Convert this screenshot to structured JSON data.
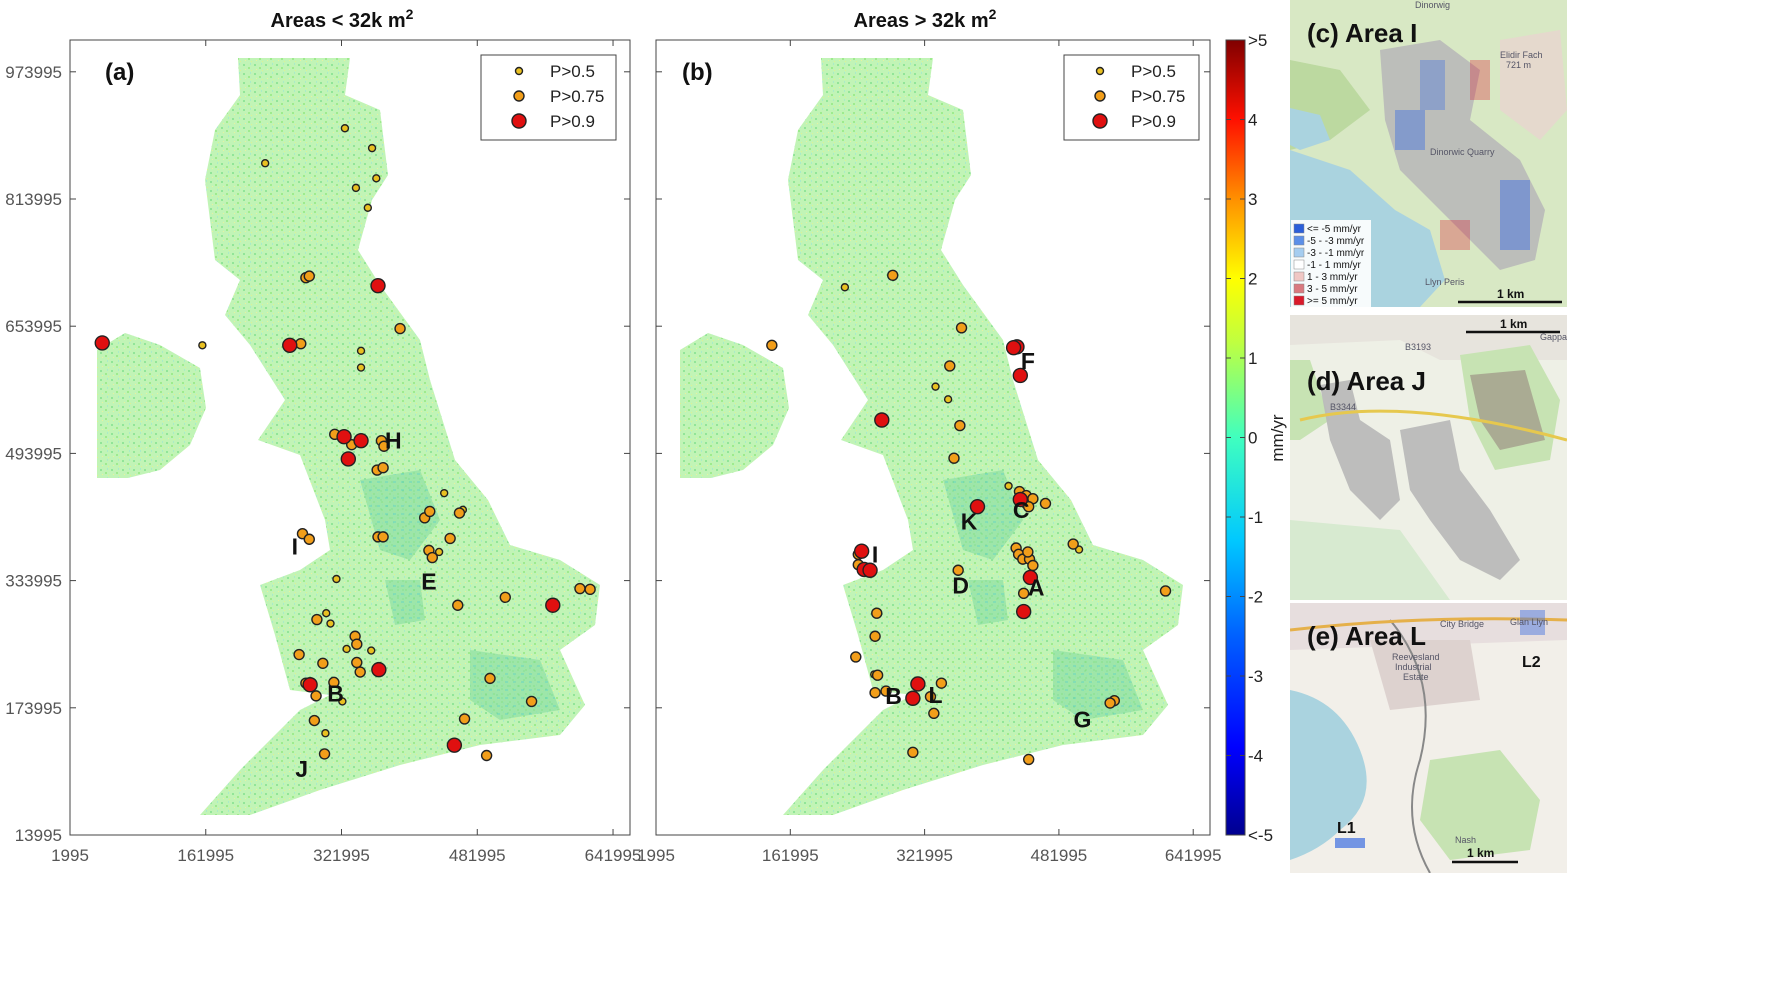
{
  "chart_data": [
    {
      "type": "scatter",
      "panel": "(a)",
      "title_main": "Areas < 32k m",
      "title_sup": "2",
      "xlim": [
        1995,
        661995
      ],
      "ylim": [
        13995,
        1013995
      ],
      "x_ticks": [
        "1995",
        "161995",
        "321995",
        "481995",
        "641995"
      ],
      "y_ticks": [
        "973995",
        "813995",
        "653995",
        "493995",
        "333995",
        "173995",
        "13995"
      ],
      "legend": [
        "P>0.5",
        "P>0.75",
        "P>0.9"
      ],
      "area_labels": [
        {
          "text": "H",
          "x": 383000,
          "y": 500000
        },
        {
          "text": "I",
          "x": 267000,
          "y": 367000
        },
        {
          "text": "E",
          "x": 425000,
          "y": 323000
        },
        {
          "text": "B",
          "x": 315000,
          "y": 182000
        },
        {
          "text": "J",
          "x": 275000,
          "y": 87000
        }
      ],
      "points_p09": [
        [
          40000,
          633000
        ],
        [
          261000,
          630000
        ],
        [
          365000,
          705000
        ],
        [
          325000,
          515000
        ],
        [
          345000,
          510000
        ],
        [
          330000,
          487000
        ],
        [
          366000,
          222000
        ],
        [
          285000,
          203000
        ],
        [
          455000,
          127000
        ],
        [
          571000,
          303000
        ]
      ],
      "points_p075": [
        [
          274000,
          632000
        ],
        [
          280000,
          715000
        ],
        [
          284000,
          717000
        ],
        [
          391000,
          651000
        ],
        [
          314000,
          518000
        ],
        [
          334000,
          505000
        ],
        [
          369000,
          510000
        ],
        [
          372000,
          503000
        ],
        [
          364000,
          473000
        ],
        [
          371000,
          476000
        ],
        [
          420000,
          413000
        ],
        [
          426000,
          421000
        ],
        [
          461000,
          419000
        ],
        [
          365000,
          389000
        ],
        [
          371000,
          389000
        ],
        [
          425000,
          372000
        ],
        [
          429000,
          363000
        ],
        [
          450000,
          387000
        ],
        [
          459000,
          303000
        ],
        [
          276000,
          393000
        ],
        [
          284000,
          386000
        ],
        [
          293000,
          285000
        ],
        [
          338000,
          264000
        ],
        [
          340000,
          254000
        ],
        [
          272000,
          241000
        ],
        [
          300000,
          230000
        ],
        [
          340000,
          231000
        ],
        [
          344000,
          219000
        ],
        [
          280000,
          205000
        ],
        [
          292000,
          189000
        ],
        [
          313000,
          206000
        ],
        [
          290000,
          158000
        ],
        [
          302000,
          116000
        ],
        [
          467000,
          160000
        ],
        [
          497000,
          211000
        ],
        [
          546000,
          182000
        ],
        [
          515000,
          313000
        ],
        [
          603000,
          324000
        ],
        [
          615000,
          323000
        ],
        [
          493000,
          114000
        ]
      ],
      "points_p05": [
        [
          158000,
          630000
        ],
        [
          232000,
          859000
        ],
        [
          326000,
          903000
        ],
        [
          358000,
          878000
        ],
        [
          363000,
          840000
        ],
        [
          339000,
          828000
        ],
        [
          353000,
          803000
        ],
        [
          345000,
          623000
        ],
        [
          345000,
          602000
        ],
        [
          309000,
          280000
        ],
        [
          304000,
          293000
        ],
        [
          328000,
          248000
        ],
        [
          357000,
          246000
        ],
        [
          303000,
          142000
        ],
        [
          323000,
          182000
        ],
        [
          465000,
          423000
        ],
        [
          443000,
          444000
        ],
        [
          316000,
          336000
        ],
        [
          437000,
          370000
        ]
      ]
    },
    {
      "type": "scatter",
      "panel": "(b)",
      "title_main": "Areas > 32k m",
      "title_sup": "2",
      "xlim": [
        1995,
        661995
      ],
      "ylim": [
        1013995,
        13995
      ],
      "x_ticks": [
        "1995",
        "161995",
        "321995",
        "481995",
        "641995"
      ],
      "legend": [
        "P>0.5",
        "P>0.75",
        "P>0.9"
      ],
      "area_labels": [
        {
          "text": "F",
          "x": 445000,
          "y": 600000
        },
        {
          "text": "C",
          "x": 437000,
          "y": 413000
        },
        {
          "text": "K",
          "x": 375000,
          "y": 398000
        },
        {
          "text": "I",
          "x": 263000,
          "y": 357000
        },
        {
          "text": "D",
          "x": 365000,
          "y": 318000
        },
        {
          "text": "A",
          "x": 455000,
          "y": 315000
        },
        {
          "text": "B",
          "x": 285000,
          "y": 179000
        },
        {
          "text": "L",
          "x": 335000,
          "y": 180000
        },
        {
          "text": "G",
          "x": 510000,
          "y": 149000
        }
      ],
      "points_p09": [
        [
          432000,
          628000
        ],
        [
          428000,
          627000
        ],
        [
          436000,
          592000
        ],
        [
          271000,
          536000
        ],
        [
          385000,
          427000
        ],
        [
          436000,
          436000
        ],
        [
          448000,
          338000
        ],
        [
          440000,
          295000
        ],
        [
          247000,
          371000
        ],
        [
          250000,
          348000
        ],
        [
          257000,
          347000
        ],
        [
          314000,
          204000
        ],
        [
          308000,
          186000
        ]
      ],
      "points_p075": [
        [
          140000,
          630000
        ],
        [
          284000,
          718000
        ],
        [
          366000,
          652000
        ],
        [
          352000,
          604000
        ],
        [
          364000,
          529000
        ],
        [
          357000,
          488000
        ],
        [
          435000,
          446000
        ],
        [
          443000,
          441000
        ],
        [
          444000,
          430000
        ],
        [
          451000,
          437000
        ],
        [
          446000,
          427000
        ],
        [
          466000,
          431000
        ],
        [
          431000,
          375000
        ],
        [
          434000,
          367000
        ],
        [
          439000,
          361000
        ],
        [
          447000,
          361000
        ],
        [
          445000,
          370000
        ],
        [
          451000,
          353000
        ],
        [
          440000,
          318000
        ],
        [
          362000,
          347000
        ],
        [
          499000,
          380000
        ],
        [
          609000,
          321000
        ],
        [
          243000,
          367000
        ],
        [
          243000,
          354000
        ],
        [
          265000,
          293000
        ],
        [
          263000,
          264000
        ],
        [
          240000,
          238000
        ],
        [
          266000,
          215000
        ],
        [
          276000,
          195000
        ],
        [
          263000,
          193000
        ],
        [
          329000,
          188000
        ],
        [
          342000,
          205000
        ],
        [
          333000,
          167000
        ],
        [
          308000,
          118000
        ],
        [
          446000,
          109000
        ],
        [
          548000,
          183000
        ],
        [
          543000,
          180000
        ]
      ],
      "points_p05": [
        [
          227000,
          703000
        ],
        [
          335000,
          578000
        ],
        [
          350000,
          562000
        ],
        [
          422000,
          453000
        ],
        [
          506000,
          373000
        ],
        [
          262000,
          216000
        ]
      ]
    }
  ],
  "colorbar": {
    "ticks": [
      ">5",
      "4",
      "3",
      "2",
      "1",
      "0",
      "-1",
      "-2",
      "-3",
      "-4",
      "<-5"
    ],
    "label": "mm/yr",
    "colors": [
      "#800000",
      "#ff0000",
      "#ff8000",
      "#ffff00",
      "#80ff80",
      "#00ffff",
      "#0080ff",
      "#0000ff",
      "#00008f"
    ]
  },
  "marker_colors": {
    "p05": "#e9c021",
    "p075": "#f29e1a",
    "p09": "#e01010"
  },
  "insets": {
    "c": {
      "title": "(c) Area I",
      "map_labels": [
        "Dinorwig",
        "Elidir Fach",
        "721 m",
        "Dinorwic Quarry",
        "Llyn Peris"
      ],
      "legend": [
        "<= -5 mm/yr",
        "-5 - -3 mm/yr",
        "-3 - -1 mm/yr",
        "-1 - 1 mm/yr",
        "1 - 3 mm/yr",
        "3 - 5 mm/yr",
        ">= 5 mm/yr"
      ],
      "legend_colors": [
        "#2b5fd9",
        "#5b8fe8",
        "#a5cdf0",
        "#ffffff",
        "#f0c7c4",
        "#d97a80",
        "#d91a2b"
      ],
      "scale": "1 km"
    },
    "d": {
      "title": "(d) Area J",
      "map_labels": [
        "Gappah",
        "B3193",
        "B3344"
      ],
      "scale": "1 km"
    },
    "e": {
      "title": "(e) Area L",
      "map_labels": [
        "City Bridge",
        "Glan Llyn",
        "Reevesland",
        "Industrial",
        "Estate",
        "Nash"
      ],
      "area_labels": [
        "L1",
        "L2"
      ],
      "scale": "1 km"
    }
  }
}
